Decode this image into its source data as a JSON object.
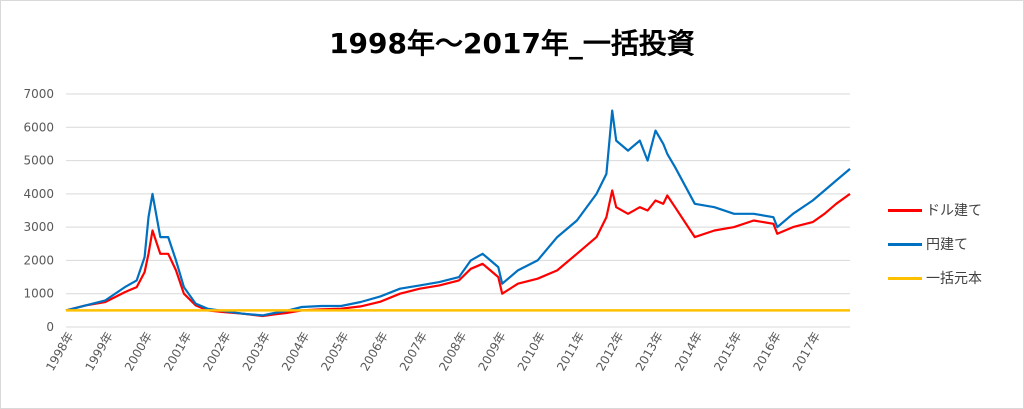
{
  "chart_data": {
    "type": "line",
    "title": "1998年～2017年_一括投資",
    "xlabel": "",
    "ylabel": "",
    "ylim": [
      0,
      7000
    ],
    "y_ticks": [
      "0",
      "1000",
      "2000",
      "3000",
      "4000",
      "5000",
      "6000",
      "7000"
    ],
    "x_ticks": [
      "1998年",
      "1999年",
      "2000年",
      "2001年",
      "2002年",
      "2003年",
      "2004年",
      "2005年",
      "2006年",
      "2007年",
      "2008年",
      "2009年",
      "2010年",
      "2011年",
      "2012年",
      "2013年",
      "2014年",
      "2015年",
      "2016年",
      "2017年"
    ],
    "grid": "horizontal",
    "legend_position": "right",
    "series": [
      {
        "name": "ドル建て",
        "color": "#ff0000",
        "x": [
          1998.0,
          1998.5,
          1999.0,
          1999.5,
          1999.8,
          2000.0,
          2000.1,
          2000.2,
          2000.4,
          2000.6,
          2000.8,
          2001.0,
          2001.3,
          2001.6,
          2002.0,
          2002.5,
          2003.0,
          2003.3,
          2003.6,
          2004.0,
          2004.5,
          2005.0,
          2005.5,
          2006.0,
          2006.5,
          2007.0,
          2007.5,
          2008.0,
          2008.3,
          2008.6,
          2008.8,
          2009.0,
          2009.1,
          2009.5,
          2010.0,
          2010.5,
          2011.0,
          2011.5,
          2011.75,
          2011.9,
          2012.0,
          2012.3,
          2012.6,
          2012.8,
          2013.0,
          2013.2,
          2013.3,
          2013.5,
          2014.0,
          2014.5,
          2015.0,
          2015.5,
          2016.0,
          2016.1,
          2016.5,
          2017.0,
          2017.3,
          2017.6,
          2017.95
        ],
        "values": [
          500,
          650,
          750,
          1050,
          1200,
          1650,
          2200,
          2900,
          2200,
          2200,
          1700,
          1000,
          650,
          500,
          450,
          400,
          330,
          380,
          420,
          500,
          530,
          550,
          620,
          760,
          1000,
          1150,
          1250,
          1400,
          1750,
          1900,
          1700,
          1500,
          1000,
          1300,
          1450,
          1700,
          2200,
          2700,
          3300,
          4100,
          3600,
          3400,
          3600,
          3500,
          3800,
          3700,
          3950,
          3600,
          2700,
          2900,
          3000,
          3200,
          3100,
          2800,
          3000,
          3150,
          3400,
          3700,
          4000
        ]
      },
      {
        "name": "円建て",
        "color": "#0070c0",
        "x": [
          1998.0,
          1998.5,
          1999.0,
          1999.5,
          1999.8,
          2000.0,
          2000.1,
          2000.2,
          2000.4,
          2000.6,
          2000.8,
          2001.0,
          2001.3,
          2001.6,
          2002.0,
          2002.5,
          2003.0,
          2003.3,
          2003.6,
          2004.0,
          2004.5,
          2005.0,
          2005.5,
          2006.0,
          2006.5,
          2007.0,
          2007.5,
          2008.0,
          2008.3,
          2008.6,
          2008.8,
          2009.0,
          2009.1,
          2009.5,
          2010.0,
          2010.5,
          2011.0,
          2011.5,
          2011.75,
          2011.9,
          2012.0,
          2012.3,
          2012.6,
          2012.8,
          2013.0,
          2013.2,
          2013.3,
          2013.5,
          2014.0,
          2014.5,
          2015.0,
          2015.5,
          2016.0,
          2016.1,
          2016.5,
          2017.0,
          2017.3,
          2017.6,
          2017.95
        ],
        "values": [
          500,
          650,
          800,
          1200,
          1400,
          2100,
          3300,
          4000,
          2700,
          2700,
          2000,
          1200,
          700,
          550,
          480,
          400,
          350,
          420,
          480,
          600,
          630,
          630,
          750,
          920,
          1150,
          1250,
          1350,
          1500,
          2000,
          2200,
          2000,
          1800,
          1300,
          1700,
          2000,
          2700,
          3200,
          4000,
          4600,
          6500,
          5600,
          5300,
          5600,
          5000,
          5900,
          5500,
          5200,
          4800,
          3700,
          3600,
          3400,
          3400,
          3300,
          3000,
          3400,
          3800,
          4100,
          4400,
          4750
        ]
      },
      {
        "name": "一括元本",
        "color": "#ffc000",
        "x": [
          1998.0,
          2017.95
        ],
        "values": [
          500,
          500
        ]
      }
    ]
  }
}
